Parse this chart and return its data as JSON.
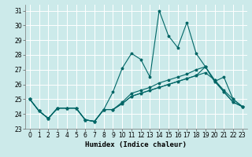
{
  "xlabel": "Humidex (Indice chaleur)",
  "background_color": "#cceaea",
  "grid_color": "#ffffff",
  "line_color": "#006666",
  "xlim": [
    -0.5,
    23.5
  ],
  "ylim": [
    23,
    31.4
  ],
  "yticks": [
    23,
    24,
    25,
    26,
    27,
    28,
    29,
    30,
    31
  ],
  "xticks": [
    0,
    1,
    2,
    3,
    4,
    5,
    6,
    7,
    8,
    9,
    10,
    11,
    12,
    13,
    14,
    15,
    16,
    17,
    18,
    19,
    20,
    21,
    22,
    23
  ],
  "series": [
    [
      25.0,
      24.2,
      23.7,
      24.4,
      24.4,
      24.4,
      23.6,
      23.5,
      24.3,
      25.5,
      27.1,
      28.1,
      27.7,
      26.5,
      31.0,
      29.3,
      28.5,
      30.2,
      28.1,
      27.2,
      26.2,
      26.5,
      25.0,
      24.5
    ],
    [
      25.0,
      24.2,
      23.7,
      24.4,
      24.4,
      24.4,
      23.6,
      23.5,
      24.3,
      24.3,
      24.7,
      25.2,
      25.4,
      25.6,
      25.8,
      26.0,
      26.2,
      26.4,
      26.6,
      26.8,
      26.3,
      25.5,
      24.8,
      24.5
    ],
    [
      25.0,
      24.2,
      23.7,
      24.4,
      24.4,
      24.4,
      23.6,
      23.5,
      24.3,
      24.3,
      24.7,
      25.2,
      25.4,
      25.6,
      25.8,
      26.0,
      26.2,
      26.4,
      26.6,
      27.2,
      26.2,
      25.5,
      24.8,
      24.5
    ],
    [
      25.0,
      24.2,
      23.7,
      24.4,
      24.4,
      24.4,
      23.6,
      23.5,
      24.3,
      24.3,
      24.8,
      25.4,
      25.6,
      25.8,
      26.1,
      26.3,
      26.5,
      26.7,
      27.0,
      27.2,
      26.3,
      25.6,
      25.0,
      24.5
    ]
  ],
  "line_width": 0.8,
  "marker_size": 2.5,
  "tick_fontsize": 5.5,
  "xlabel_fontsize": 6.5
}
